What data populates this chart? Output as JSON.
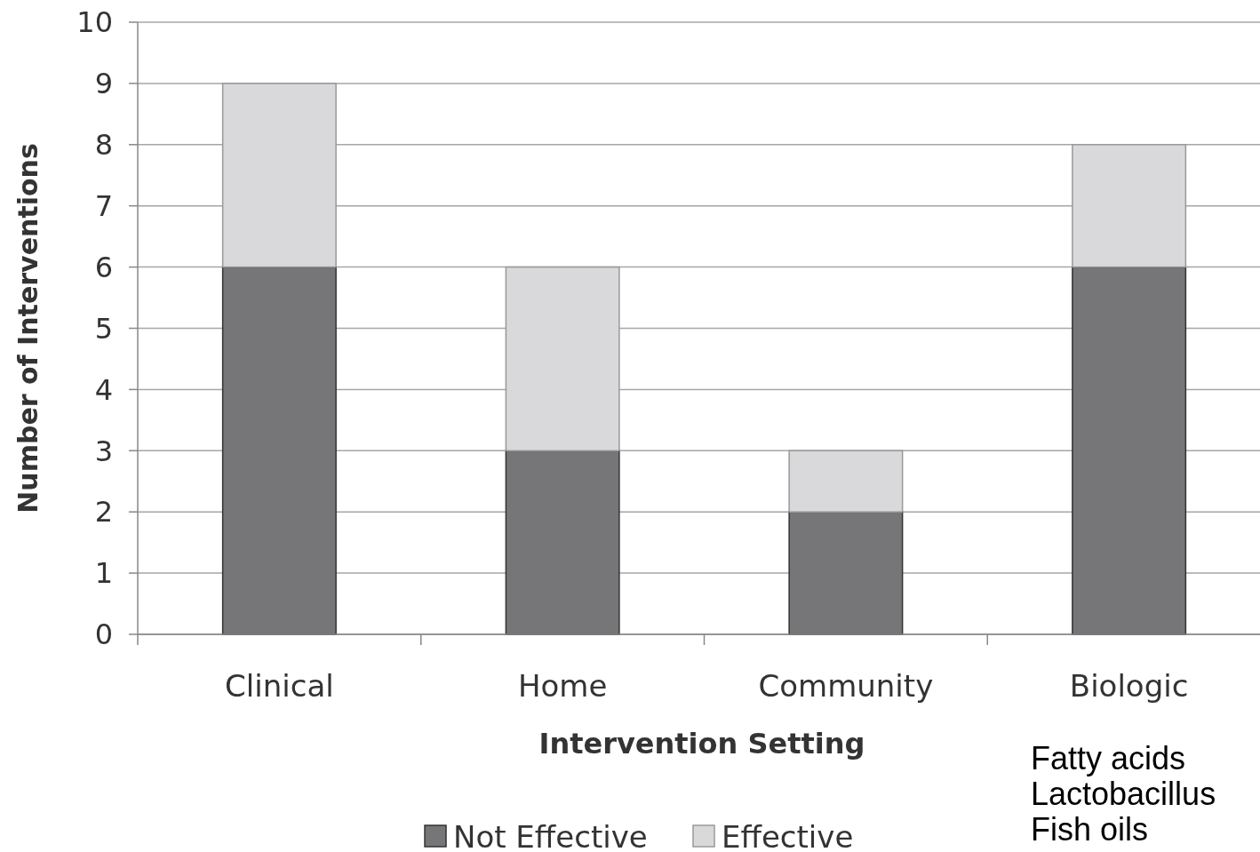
{
  "chart_data": {
    "type": "bar",
    "stacked": true,
    "xlabel": "Intervention Setting",
    "ylabel": "Number of Interventions",
    "categories": [
      "Clinical",
      "Home",
      "Community",
      "Biologic"
    ],
    "series": [
      {
        "name": "Not Effective",
        "color": "#767678",
        "values": [
          6,
          3,
          2,
          6
        ]
      },
      {
        "name": "Effective",
        "color": "#d9d9db",
        "values": [
          3,
          3,
          1,
          2
        ]
      }
    ],
    "ylim": [
      0,
      10
    ],
    "yticks": [
      0,
      1,
      2,
      3,
      4,
      5,
      6,
      7,
      8,
      9,
      10
    ],
    "grid": "y",
    "legend": "bottom",
    "annotations": [
      "Fatty acids",
      "Lactobacillus",
      "Fish oils"
    ]
  }
}
